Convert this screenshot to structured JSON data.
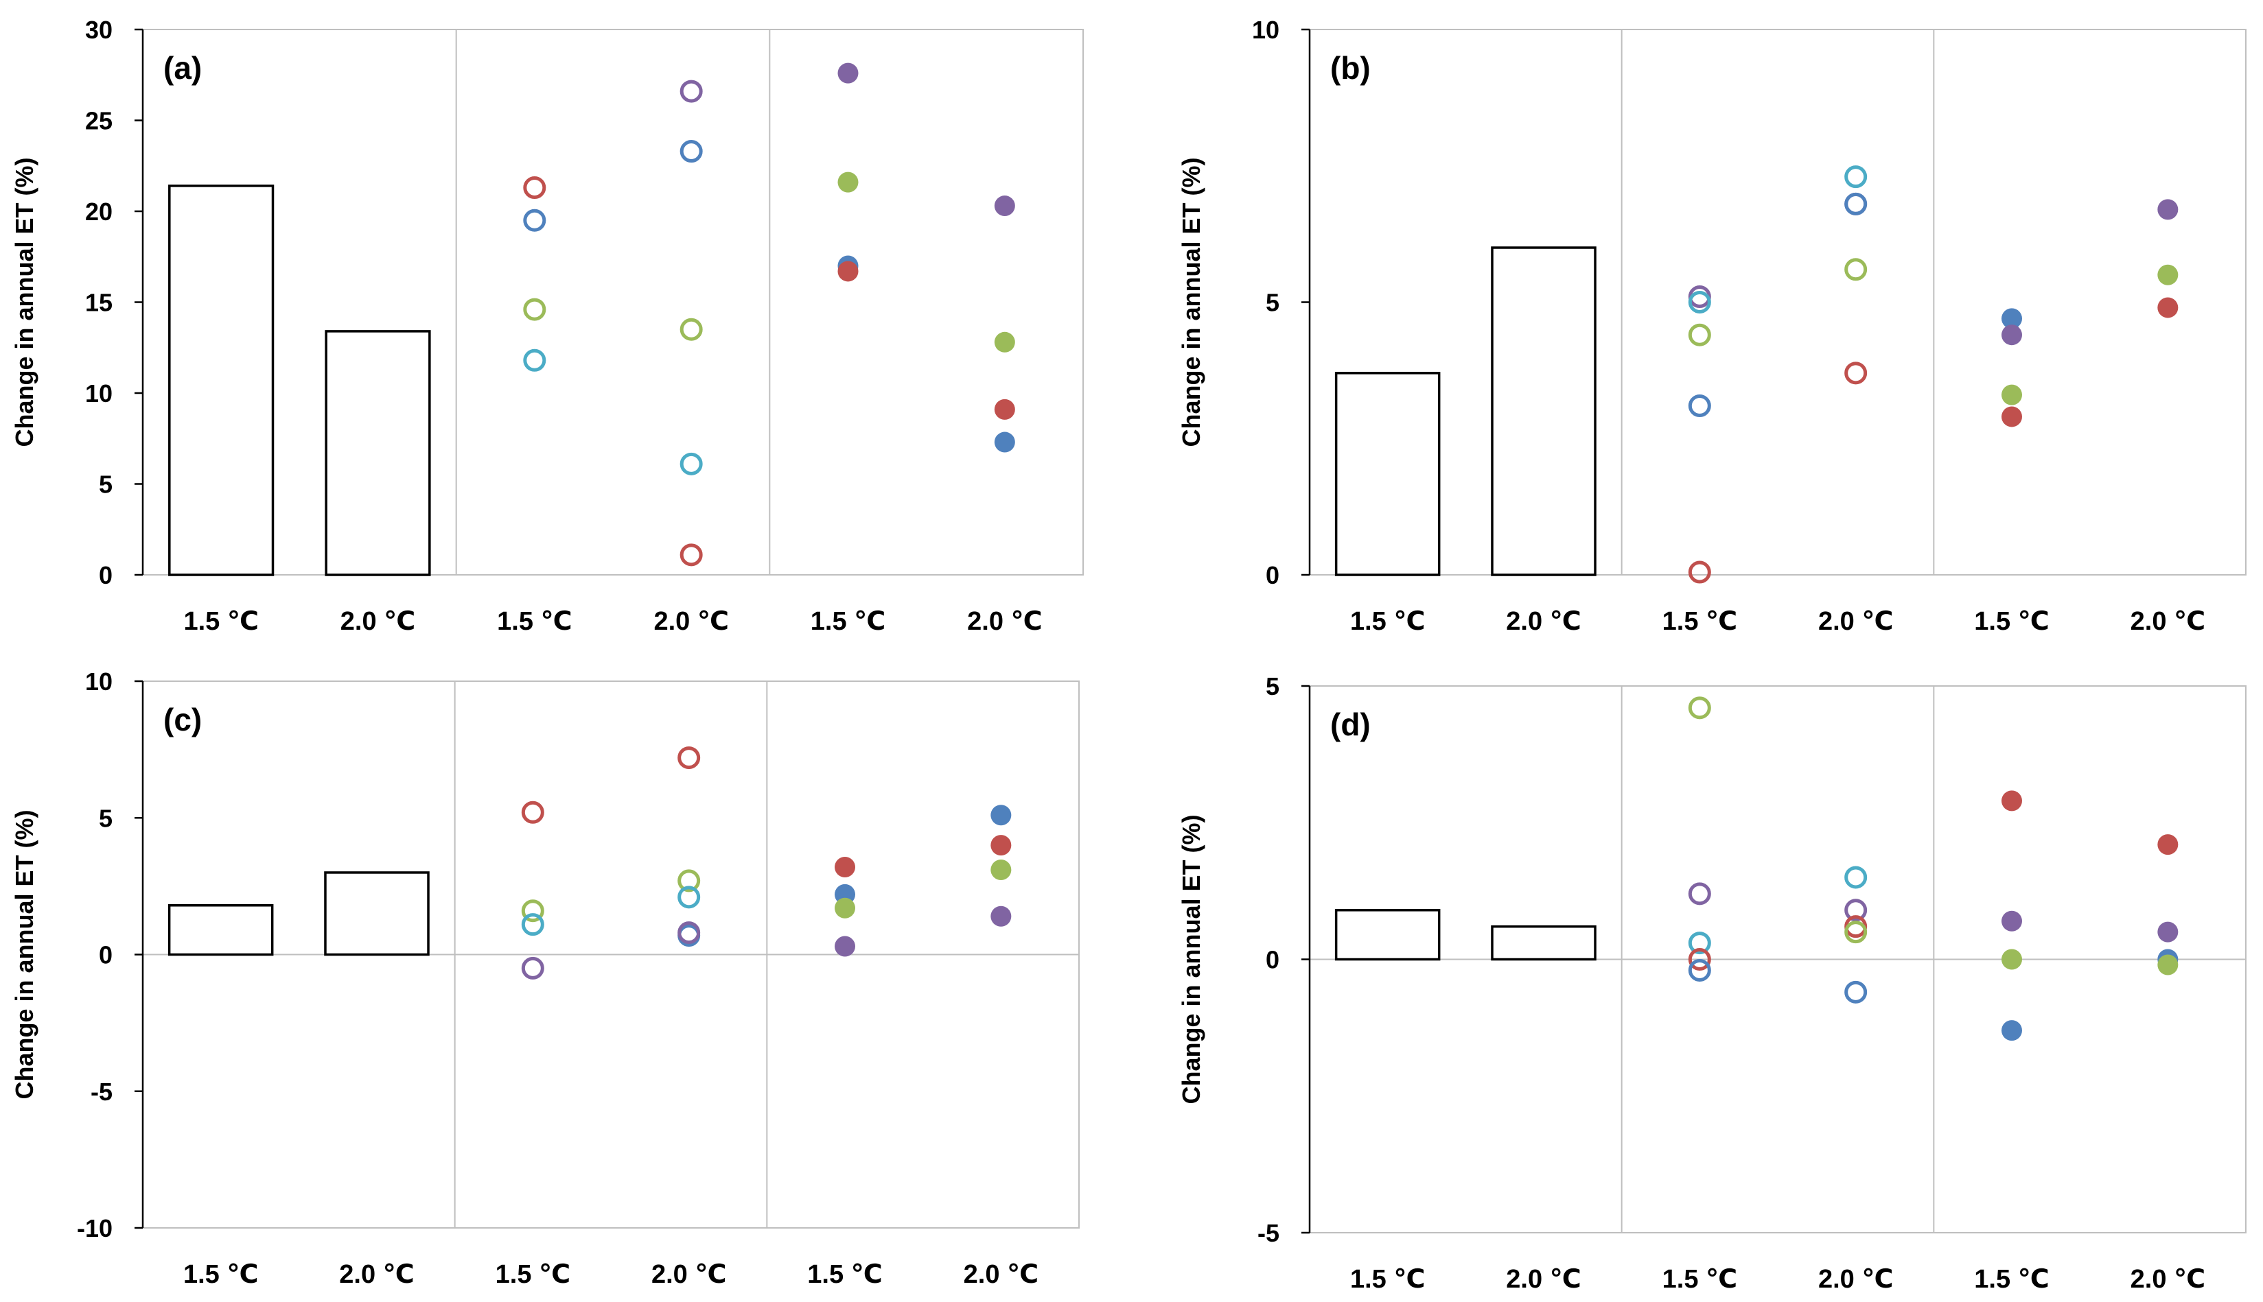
{
  "colors": {
    "red": "#c0504d",
    "blue": "#4f81bd",
    "green": "#9bbb59",
    "purple": "#8064a2",
    "cyan": "#4bacc6",
    "grid": "#bfbfbf",
    "axis": "#000000"
  },
  "chart_data": [
    {
      "type": "bar+scatter",
      "panel_label": "(a)",
      "ylabel": "Change in annual ET (%)",
      "ylim": [
        0,
        30
      ],
      "yticks": [
        "0",
        "5",
        "10",
        "15",
        "20",
        "25",
        "30"
      ],
      "xtick_labels": [
        "1.5 ℃",
        "2.0 ℃",
        "1.5 ℃",
        "2.0 ℃",
        "1.5 ℃",
        "2.0 ℃"
      ],
      "bars": [
        21.4,
        13.4
      ],
      "open_points": [
        {
          "x": 1,
          "color": "red",
          "y": 21.3
        },
        {
          "x": 1,
          "color": "blue",
          "y": 19.5
        },
        {
          "x": 1,
          "color": "green",
          "y": 14.6
        },
        {
          "x": 1,
          "color": "cyan",
          "y": 11.8
        },
        {
          "x": 2,
          "color": "purple",
          "y": 26.6
        },
        {
          "x": 2,
          "color": "blue",
          "y": 23.3
        },
        {
          "x": 2,
          "color": "green",
          "y": 13.5
        },
        {
          "x": 2,
          "color": "cyan",
          "y": 6.1
        },
        {
          "x": 2,
          "color": "red",
          "y": 1.1
        }
      ],
      "filled_points": [
        {
          "x": 1,
          "color": "purple",
          "y": 27.6
        },
        {
          "x": 1,
          "color": "green",
          "y": 21.6
        },
        {
          "x": 1,
          "color": "blue",
          "y": 17.0
        },
        {
          "x": 1,
          "color": "red",
          "y": 16.7
        },
        {
          "x": 2,
          "color": "purple",
          "y": 20.3
        },
        {
          "x": 2,
          "color": "green",
          "y": 12.8
        },
        {
          "x": 2,
          "color": "red",
          "y": 9.1
        },
        {
          "x": 2,
          "color": "blue",
          "y": 7.3
        }
      ]
    },
    {
      "type": "bar+scatter",
      "panel_label": "(b)",
      "ylabel": "Change in annual ET (%)",
      "ylim": [
        0,
        10
      ],
      "yticks": [
        "0",
        "5",
        "10"
      ],
      "xtick_labels": [
        "1.5 ℃",
        "2.0 ℃",
        "1.5 ℃",
        "2.0 ℃",
        "1.5 ℃",
        "2.0 ℃"
      ],
      "bars": [
        3.7,
        6.0
      ],
      "open_points": [
        {
          "x": 1,
          "color": "purple",
          "y": 5.1
        },
        {
          "x": 1,
          "color": "cyan",
          "y": 5.0
        },
        {
          "x": 1,
          "color": "green",
          "y": 4.4
        },
        {
          "x": 1,
          "color": "blue",
          "y": 3.1
        },
        {
          "x": 1,
          "color": "red",
          "y": 0.05
        },
        {
          "x": 2,
          "color": "cyan",
          "y": 7.3
        },
        {
          "x": 2,
          "color": "purple",
          "y": 6.8
        },
        {
          "x": 2,
          "color": "blue",
          "y": 6.8
        },
        {
          "x": 2,
          "color": "green",
          "y": 5.6
        },
        {
          "x": 2,
          "color": "red",
          "y": 3.7
        }
      ],
      "filled_points": [
        {
          "x": 1,
          "color": "blue",
          "y": 4.7
        },
        {
          "x": 1,
          "color": "purple",
          "y": 4.4
        },
        {
          "x": 1,
          "color": "green",
          "y": 3.3
        },
        {
          "x": 1,
          "color": "red",
          "y": 2.9
        },
        {
          "x": 2,
          "color": "purple",
          "y": 6.7
        },
        {
          "x": 2,
          "color": "green",
          "y": 5.5
        },
        {
          "x": 2,
          "color": "red",
          "y": 4.9
        }
      ]
    },
    {
      "type": "bar+scatter",
      "panel_label": "(c)",
      "ylabel": "Change in annual ET (%)",
      "ylim": [
        -10,
        10
      ],
      "yticks": [
        "-10",
        "-5",
        "0",
        "5",
        "10"
      ],
      "xtick_labels": [
        "1.5 ℃",
        "2.0 ℃",
        "1.5 ℃",
        "2.0 ℃",
        "1.5 ℃",
        "2.0 ℃"
      ],
      "bars": [
        1.8,
        3.0
      ],
      "open_points": [
        {
          "x": 1,
          "color": "red",
          "y": 5.2
        },
        {
          "x": 1,
          "color": "green",
          "y": 1.6
        },
        {
          "x": 1,
          "color": "cyan",
          "y": 1.1
        },
        {
          "x": 1,
          "color": "purple",
          "y": -0.5
        },
        {
          "x": 2,
          "color": "red",
          "y": 7.2
        },
        {
          "x": 2,
          "color": "green",
          "y": 2.7
        },
        {
          "x": 2,
          "color": "cyan",
          "y": 2.1
        },
        {
          "x": 2,
          "color": "blue",
          "y": 0.7
        },
        {
          "x": 2,
          "color": "purple",
          "y": 0.8
        }
      ],
      "filled_points": [
        {
          "x": 1,
          "color": "red",
          "y": 3.2
        },
        {
          "x": 1,
          "color": "blue",
          "y": 2.2
        },
        {
          "x": 1,
          "color": "green",
          "y": 1.7
        },
        {
          "x": 1,
          "color": "purple",
          "y": 0.3
        },
        {
          "x": 2,
          "color": "blue",
          "y": 5.1
        },
        {
          "x": 2,
          "color": "red",
          "y": 4.0
        },
        {
          "x": 2,
          "color": "green",
          "y": 3.1
        },
        {
          "x": 2,
          "color": "purple",
          "y": 1.4
        }
      ]
    },
    {
      "type": "bar+scatter",
      "panel_label": "(d)",
      "ylabel": "Change in annual ET (%)",
      "ylim": [
        -5,
        5
      ],
      "yticks": [
        "-5",
        "0",
        "5"
      ],
      "xtick_labels": [
        "1.5 ℃",
        "2.0 ℃",
        "1.5 ℃",
        "2.0 ℃",
        "1.5 ℃",
        "2.0 ℃"
      ],
      "bars": [
        0.9,
        0.6
      ],
      "open_points": [
        {
          "x": 1,
          "color": "green",
          "y": 4.6
        },
        {
          "x": 1,
          "color": "purple",
          "y": 1.2
        },
        {
          "x": 1,
          "color": "cyan",
          "y": 0.3
        },
        {
          "x": 1,
          "color": "red",
          "y": 0.0
        },
        {
          "x": 1,
          "color": "blue",
          "y": -0.2
        },
        {
          "x": 2,
          "color": "cyan",
          "y": 1.5
        },
        {
          "x": 2,
          "color": "purple",
          "y": 0.9
        },
        {
          "x": 2,
          "color": "red",
          "y": 0.6
        },
        {
          "x": 2,
          "color": "green",
          "y": 0.5
        },
        {
          "x": 2,
          "color": "blue",
          "y": -0.6
        }
      ],
      "filled_points": [
        {
          "x": 1,
          "color": "red",
          "y": 2.9
        },
        {
          "x": 1,
          "color": "purple",
          "y": 0.7
        },
        {
          "x": 1,
          "color": "green",
          "y": 0.0
        },
        {
          "x": 1,
          "color": "blue",
          "y": -1.3
        },
        {
          "x": 2,
          "color": "red",
          "y": 2.1
        },
        {
          "x": 2,
          "color": "purple",
          "y": 0.5
        },
        {
          "x": 2,
          "color": "blue",
          "y": 0.0
        },
        {
          "x": 2,
          "color": "green",
          "y": -0.1
        }
      ]
    }
  ]
}
